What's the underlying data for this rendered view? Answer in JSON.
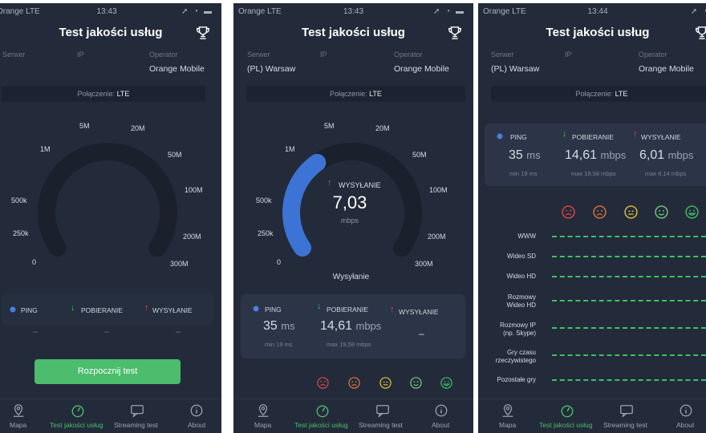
{
  "status_bar": {
    "carrier": "Orange  LTE",
    "time_1": "13:43",
    "time_2": "13:43",
    "time_3": "13:44"
  },
  "app": {
    "title": "Test jakości usług"
  },
  "info": {
    "labels": {
      "server": "Serwer",
      "ip": "IP",
      "operator": "Operator"
    },
    "server_value": "(PL) Warsaw",
    "operator_value": "Orange Mobile"
  },
  "connection": {
    "label": "Połączenie:",
    "value": "LTE"
  },
  "gauge": {
    "ticks": [
      "0",
      "250k",
      "500k",
      "1M",
      "5M",
      "20M",
      "50M",
      "100M",
      "200M",
      "300M"
    ],
    "progress_fraction": 0.36,
    "current_label": "WYSYŁANIE",
    "current_value": "7,03",
    "current_unit": "mbps",
    "phase_label": "Wysyłanie"
  },
  "stats": {
    "ping_label": "PING",
    "download_label": "POBIERANIE",
    "upload_label": "WYSYŁANIE",
    "dash": "–",
    "ping_value": "35",
    "ping_unit": "ms",
    "ping_sub": "min 19 ms",
    "download_value": "14,61",
    "download_unit": "mbps",
    "download_sub": "max 19,58 mbps",
    "upload_value": "6,01",
    "upload_unit": "mbps",
    "upload_sub": "max 6,14 mbps"
  },
  "start_button": "Rozpocznij test",
  "quality_rows": [
    "WWW",
    "Wideo SD",
    "Wideo HD",
    "Rozmowy\nWideo HD",
    "Rozmowy IP\n(np. Skype)",
    "Gry czasu\nrzeczywistego",
    "Pozostałe gry"
  ],
  "face_colors": [
    "#e04848",
    "#e8733a",
    "#e3c23a",
    "#6fcf7b",
    "#3fbf63"
  ],
  "tabs": [
    {
      "label": "Mapa",
      "icon": "map-pin-icon"
    },
    {
      "label": "Test jakości usług",
      "icon": "speedometer-icon"
    },
    {
      "label": "Streaming test",
      "icon": "video-message-icon"
    },
    {
      "label": "About",
      "icon": "info-icon"
    }
  ],
  "colors": {
    "accent_green": "#4bbd6c",
    "gauge_blue": "#3d73d4",
    "background": "#232b3a",
    "panel": "#2c3547"
  }
}
